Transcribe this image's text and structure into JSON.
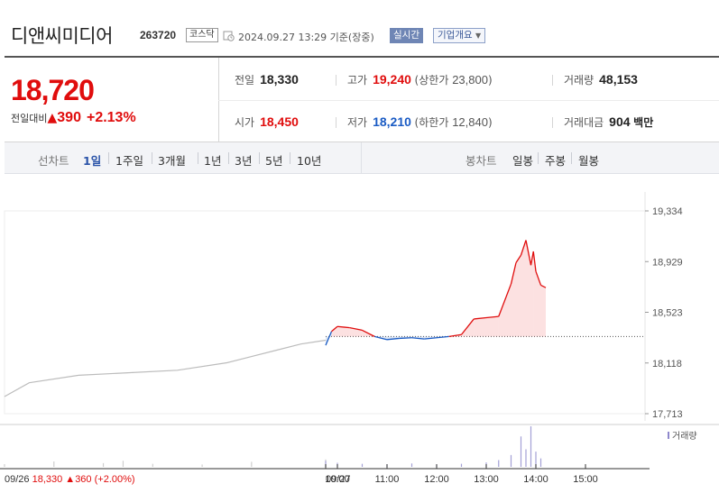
{
  "header": {
    "stock_name": "디앤씨미디어",
    "stock_code": "263720",
    "market": "코스닥",
    "datetime": "2024.09.27 13:29 기준(장중)",
    "realtime_label": "실시간",
    "company_label": "기업개요",
    "icons": {
      "clock": "clock-icon",
      "dropdown": "chevron-down-icon"
    }
  },
  "summary": {
    "current_price": "18,720",
    "change_label": "전일대비",
    "change_arrow": "▲",
    "change_amount": "390",
    "change_percent": "+2.13%",
    "prev_close_label": "전일",
    "prev_close": "18,330",
    "open_label": "시가",
    "open": "18,450",
    "high_label": "고가",
    "high": "19,240",
    "upper_limit_label": "상한가",
    "upper_limit": "23,800",
    "low_label": "저가",
    "low": "18,210",
    "lower_limit_label": "하한가",
    "lower_limit": "12,840",
    "volume_label": "거래량",
    "volume": "48,153",
    "amount_label": "거래대금",
    "amount": "904",
    "amount_unit": "백만"
  },
  "period_bar": {
    "line_chart_label": "선차트",
    "line_periods": [
      "1일",
      "1주일",
      "3개월",
      "1년",
      "3년",
      "5년",
      "10년"
    ],
    "active_period": "1일",
    "candle_chart_label": "봉차트",
    "candle_periods": [
      "일봉",
      "주봉",
      "월봉"
    ]
  },
  "colors": {
    "up": "#e00d0d",
    "down": "#1a5bc4",
    "accent": "#2a53a8",
    "prev_day_line": "#bcbcbc"
  },
  "chart_data": {
    "type": "line",
    "ylim": [
      17713,
      19334
    ],
    "yticks": [
      "19,334",
      "18,929",
      "18,523",
      "18,118",
      "17,713"
    ],
    "xticks": [
      "09/26",
      "09/27",
      "10:00",
      "11:00",
      "12:00",
      "13:00",
      "14:00",
      "15:00"
    ],
    "reference_price": 18330,
    "previous_day_label": "09/26",
    "previous_day_summary": {
      "close": "18,330",
      "arrow": "▲",
      "change": "360",
      "percent": "(+2.00%)"
    },
    "volume_legend": "거래량",
    "series": [
      {
        "name": "09/26",
        "color": "#bcbcbc",
        "x": [
          0,
          0.5,
          1.5,
          2.5,
          3.5,
          4.5,
          5,
          5.5,
          6,
          6.5
        ],
        "y": [
          17850,
          17960,
          18020,
          18040,
          18060,
          18120,
          18170,
          18220,
          18270,
          18300
        ]
      },
      {
        "name": "09/27",
        "x": [
          0,
          0.25,
          0.5,
          0.75,
          1,
          1.25,
          1.5,
          1.75,
          2,
          2.25,
          2.5,
          2.75,
          3,
          3.25,
          3.5,
          3.75,
          4,
          4.1,
          4.2,
          4.3,
          4.4,
          4.45,
          4.5,
          4.6,
          4.7
        ],
        "y": [
          18260,
          18370,
          18410,
          18400,
          18380,
          18330,
          18305,
          18315,
          18320,
          18310,
          18320,
          18330,
          18345,
          18470,
          18480,
          18490,
          18750,
          18920,
          18980,
          19100,
          18900,
          19010,
          18850,
          18740,
          18720
        ]
      }
    ],
    "volume": [
      {
        "day": "09/26",
        "x": [
          0,
          1,
          2,
          2.4,
          3,
          4,
          5,
          6.5
        ],
        "v": [
          800,
          1600,
          1100,
          1800,
          900,
          700,
          1500,
          2200
        ]
      },
      {
        "day": "09/27",
        "x": [
          0,
          0.5,
          1,
          1.5,
          2,
          2.5,
          3,
          3.5,
          3.75,
          4,
          4.2,
          4.3,
          4.4,
          4.5,
          4.6
        ],
        "v": [
          1800,
          1200,
          900,
          800,
          1000,
          700,
          900,
          1300,
          2000,
          3500,
          9000,
          5200,
          12000,
          4500,
          2500
        ]
      }
    ]
  }
}
